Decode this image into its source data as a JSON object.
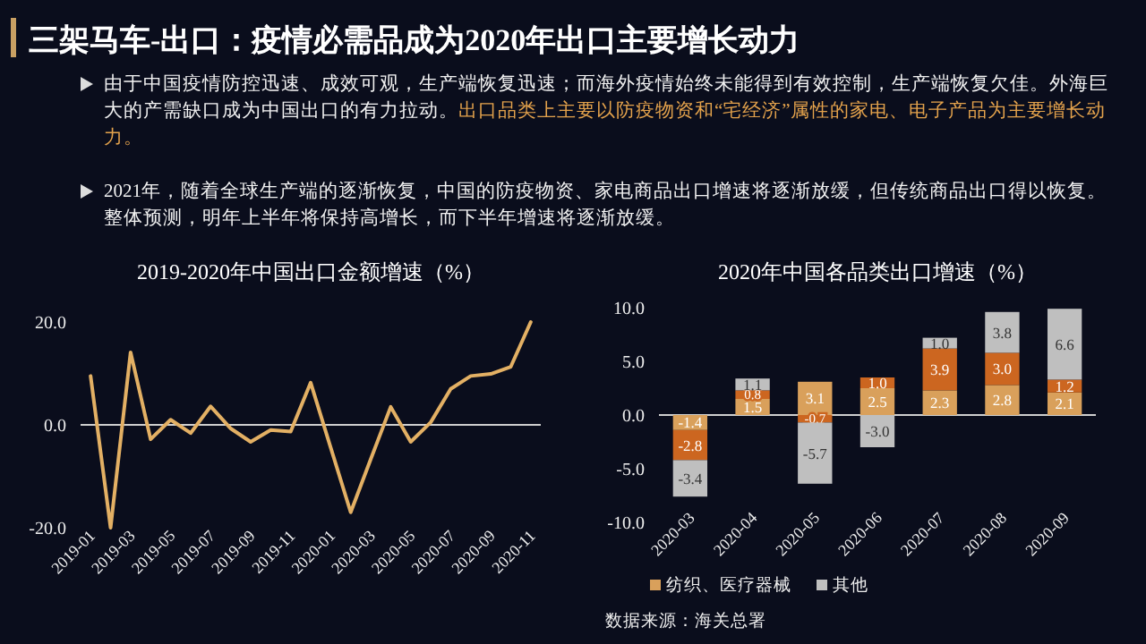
{
  "chart_data": [
    {
      "type": "other",
      "title": "三架马车-出口：疫情必需品成为2020年出口主要增长动力",
      "annotations": [
        "由于中国疫情防控迅速、成效可观，生产端恢复迅速；而海外疫情始终未能得到有效控制，生产端恢复欠佳。外海巨大的产需缺口成为中国出口的有力拉动。",
        "出口品类上主要以防疫物资和“宅经济”属性的家电、电子产品为主要增长动力。",
        "2021年，随着全球生产端的逐渐恢复，中国的防疫物资、家电商品出口增速将逐渐放缓，但传统商品出口得以恢复。整体预测，明年上半年将保持高增长，而下半年增速将逐渐放缓。"
      ]
    },
    {
      "type": "line",
      "title": "2019-2020年中国出口金额增速（%）",
      "color": "#e3b064",
      "categories": [
        "2019-01",
        null,
        "2019-03",
        null,
        "2019-05",
        null,
        "2019-07",
        null,
        "2019-09",
        null,
        "2019-11",
        null,
        "2020-01",
        null,
        "2020-03",
        null,
        "2020-05",
        null,
        "2020-07",
        null,
        "2020-09",
        null,
        "2020-11"
      ],
      "values": [
        9.5,
        -20.0,
        14.1,
        -2.8,
        1.0,
        -1.6,
        3.6,
        -0.7,
        -3.3,
        -1.0,
        -1.3,
        8.2,
        -4.4,
        -17.0,
        -6.7,
        3.5,
        -3.3,
        0.5,
        7.0,
        9.5,
        9.9,
        11.3,
        20.0
      ],
      "ylim": [
        -20,
        20
      ],
      "yticks": [
        {
          "value": -20,
          "label": "-20.0"
        },
        {
          "value": 0,
          "label": "0.0"
        },
        {
          "value": 20,
          "label": "20.0"
        }
      ]
    },
    {
      "type": "bar",
      "title": "2020年中国各品类出口增速（%）",
      "stacked": true,
      "legend": "bottom",
      "categories": [
        "2020-03",
        "2020-04",
        "2020-05",
        "2020-06",
        "2020-07",
        "2020-08",
        "2020-09"
      ],
      "series": [
        {
          "name": "纺织、医疗器械",
          "color": "#d9a05b",
          "values": [
            -1.4,
            1.5,
            3.1,
            2.5,
            2.3,
            2.8,
            2.1
          ],
          "value_labels": [
            "-1.4",
            "1.5",
            "3.1",
            "2.5",
            "2.3",
            "2.8",
            "2.1"
          ]
        },
        {
          "color": "#cc6620",
          "values": [
            -2.8,
            0.8,
            -0.7,
            1.0,
            3.9,
            3.0,
            1.2
          ],
          "value_labels": [
            "-2.8",
            "0.8",
            "-0.7",
            "1.0",
            "3.9",
            "3.0",
            "1.2"
          ]
        },
        {
          "name": "其他",
          "color": "#bfbfbf",
          "values": [
            -3.4,
            1.1,
            -5.7,
            -3.0,
            1.0,
            3.8,
            6.6
          ],
          "value_labels": [
            "-3.4",
            "1.1",
            "-5.7",
            "-3.0",
            "1.0",
            "3.8",
            "6.6"
          ]
        }
      ],
      "ylim": [
        -10,
        10
      ],
      "yticks": [
        {
          "value": -10,
          "label": "-10.0"
        },
        {
          "value": -5,
          "label": "-5.0"
        },
        {
          "value": 0,
          "label": "0.0"
        },
        {
          "value": 5,
          "label": "5.0"
        },
        {
          "value": 10,
          "label": "10.0"
        }
      ],
      "annotations": [
        "数据来源：海关总署"
      ]
    }
  ]
}
